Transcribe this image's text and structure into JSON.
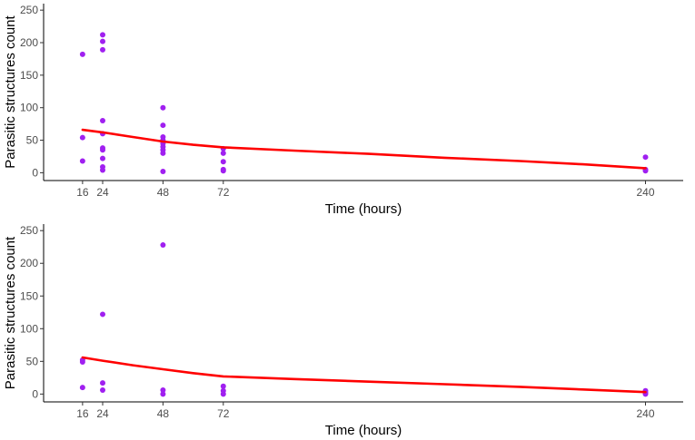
{
  "colors": {
    "point": "#a020f0",
    "fit": "#ff0000",
    "axis": "#000000"
  },
  "chart_data": [
    {
      "type": "scatter",
      "xlabel": "Time (hours)",
      "ylabel": "Parasitic structures count",
      "xlim": [
        0.5,
        255
      ],
      "ylim": [
        -12,
        260
      ],
      "x_ticks": [
        16,
        24,
        48,
        72,
        240
      ],
      "y_ticks": [
        0,
        50,
        100,
        150,
        200,
        250
      ],
      "grid": false,
      "points": [
        {
          "x": 16,
          "y": 182
        },
        {
          "x": 16,
          "y": 54
        },
        {
          "x": 16,
          "y": 18
        },
        {
          "x": 24,
          "y": 212
        },
        {
          "x": 24,
          "y": 202
        },
        {
          "x": 24,
          "y": 189
        },
        {
          "x": 24,
          "y": 80
        },
        {
          "x": 24,
          "y": 60
        },
        {
          "x": 24,
          "y": 38
        },
        {
          "x": 24,
          "y": 35
        },
        {
          "x": 24,
          "y": 22
        },
        {
          "x": 24,
          "y": 9
        },
        {
          "x": 24,
          "y": 4
        },
        {
          "x": 48,
          "y": 100
        },
        {
          "x": 48,
          "y": 73
        },
        {
          "x": 48,
          "y": 55
        },
        {
          "x": 48,
          "y": 50
        },
        {
          "x": 48,
          "y": 45
        },
        {
          "x": 48,
          "y": 40
        },
        {
          "x": 48,
          "y": 35
        },
        {
          "x": 48,
          "y": 30
        },
        {
          "x": 48,
          "y": 2
        },
        {
          "x": 72,
          "y": 37
        },
        {
          "x": 72,
          "y": 30
        },
        {
          "x": 72,
          "y": 17
        },
        {
          "x": 72,
          "y": 5
        },
        {
          "x": 72,
          "y": 3
        },
        {
          "x": 240,
          "y": 24
        },
        {
          "x": 240,
          "y": 5
        },
        {
          "x": 240,
          "y": 3
        }
      ],
      "fit_line": [
        {
          "x": 16,
          "y": 66
        },
        {
          "x": 24,
          "y": 62
        },
        {
          "x": 36,
          "y": 55
        },
        {
          "x": 48,
          "y": 48
        },
        {
          "x": 60,
          "y": 43
        },
        {
          "x": 72,
          "y": 39
        },
        {
          "x": 100,
          "y": 34
        },
        {
          "x": 130,
          "y": 29
        },
        {
          "x": 160,
          "y": 23
        },
        {
          "x": 190,
          "y": 18
        },
        {
          "x": 215,
          "y": 13
        },
        {
          "x": 240,
          "y": 7
        }
      ]
    },
    {
      "type": "scatter",
      "xlabel": "Time (hours)",
      "ylabel": "Parasitic structures count",
      "xlim": [
        0.5,
        255
      ],
      "ylim": [
        -12,
        260
      ],
      "x_ticks": [
        16,
        24,
        48,
        72,
        240
      ],
      "y_ticks": [
        0,
        50,
        100,
        150,
        200,
        250
      ],
      "grid": false,
      "points": [
        {
          "x": 16,
          "y": 52
        },
        {
          "x": 16,
          "y": 49
        },
        {
          "x": 16,
          "y": 10
        },
        {
          "x": 24,
          "y": 122
        },
        {
          "x": 24,
          "y": 17
        },
        {
          "x": 24,
          "y": 6
        },
        {
          "x": 48,
          "y": 228
        },
        {
          "x": 48,
          "y": 6
        },
        {
          "x": 48,
          "y": 0
        },
        {
          "x": 72,
          "y": 12
        },
        {
          "x": 72,
          "y": 5
        },
        {
          "x": 72,
          "y": 0
        },
        {
          "x": 240,
          "y": 5
        },
        {
          "x": 240,
          "y": 2
        },
        {
          "x": 240,
          "y": 0
        }
      ],
      "fit_line": [
        {
          "x": 16,
          "y": 56
        },
        {
          "x": 24,
          "y": 51
        },
        {
          "x": 36,
          "y": 44
        },
        {
          "x": 48,
          "y": 38
        },
        {
          "x": 60,
          "y": 32
        },
        {
          "x": 72,
          "y": 27
        },
        {
          "x": 100,
          "y": 23
        },
        {
          "x": 130,
          "y": 19
        },
        {
          "x": 160,
          "y": 15
        },
        {
          "x": 190,
          "y": 11
        },
        {
          "x": 215,
          "y": 7
        },
        {
          "x": 240,
          "y": 3
        }
      ]
    }
  ]
}
